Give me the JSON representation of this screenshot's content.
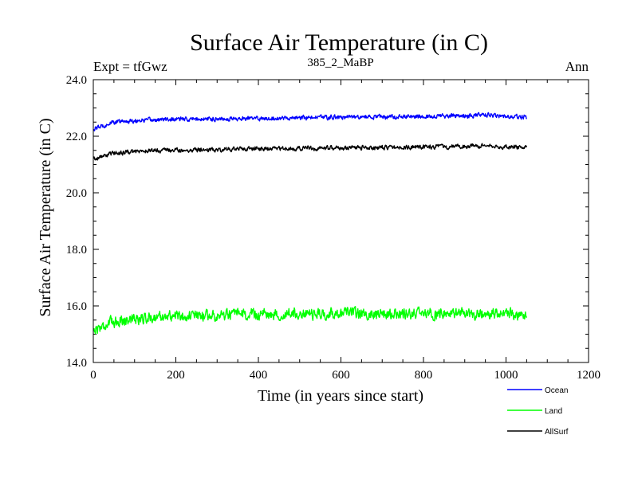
{
  "header": {
    "title": "Surface Air Temperature (in C)",
    "expt": "Expt = tfGwz",
    "subtitle": "385_2_MaBP",
    "period": "Ann"
  },
  "chart_data": {
    "type": "line",
    "title": "Surface Air Temperature (in C)",
    "xlabel": "Time (in years since start)",
    "ylabel": "Surface Air Temperature (in C)",
    "xlim": [
      0,
      1200
    ],
    "ylim": [
      14.0,
      24.0
    ],
    "x_ticks": [
      0,
      200,
      400,
      600,
      800,
      1000,
      1200
    ],
    "x_tick_labels": [
      "0",
      "200",
      "400",
      "600",
      "800",
      "1000",
      "1200"
    ],
    "y_ticks": [
      14,
      16,
      18,
      20,
      22,
      24
    ],
    "y_tick_labels": [
      "14.0",
      "16.0",
      "18.0",
      "20.0",
      "22.0",
      "24.0"
    ],
    "legend_position": "bottom-right, outside plot",
    "series": [
      {
        "name": "Ocean",
        "color": "#0000ff",
        "x_start": 0,
        "x_end": 1050,
        "step": 50,
        "values": [
          22.25,
          22.5,
          22.55,
          22.58,
          22.6,
          22.6,
          22.62,
          22.62,
          22.63,
          22.65,
          22.65,
          22.67,
          22.67,
          22.68,
          22.68,
          22.7,
          22.7,
          22.72,
          22.72,
          22.75,
          22.7,
          22.68
        ],
        "noise": 0.12
      },
      {
        "name": "Land",
        "color": "#00ff00",
        "x_start": 0,
        "x_end": 1050,
        "step": 50,
        "values": [
          15.15,
          15.45,
          15.55,
          15.6,
          15.65,
          15.65,
          15.68,
          15.68,
          15.7,
          15.7,
          15.72,
          15.72,
          15.73,
          15.73,
          15.72,
          15.73,
          15.72,
          15.72,
          15.72,
          15.72,
          15.7,
          15.7
        ],
        "noise": 0.3
      },
      {
        "name": "AllSurf",
        "color": "#000000",
        "x_start": 0,
        "x_end": 1050,
        "step": 50,
        "values": [
          21.2,
          21.4,
          21.45,
          21.5,
          21.5,
          21.52,
          21.53,
          21.55,
          21.55,
          21.57,
          21.57,
          21.58,
          21.58,
          21.6,
          21.6,
          21.6,
          21.62,
          21.62,
          21.63,
          21.65,
          21.62,
          21.6
        ],
        "noise": 0.12
      }
    ]
  }
}
